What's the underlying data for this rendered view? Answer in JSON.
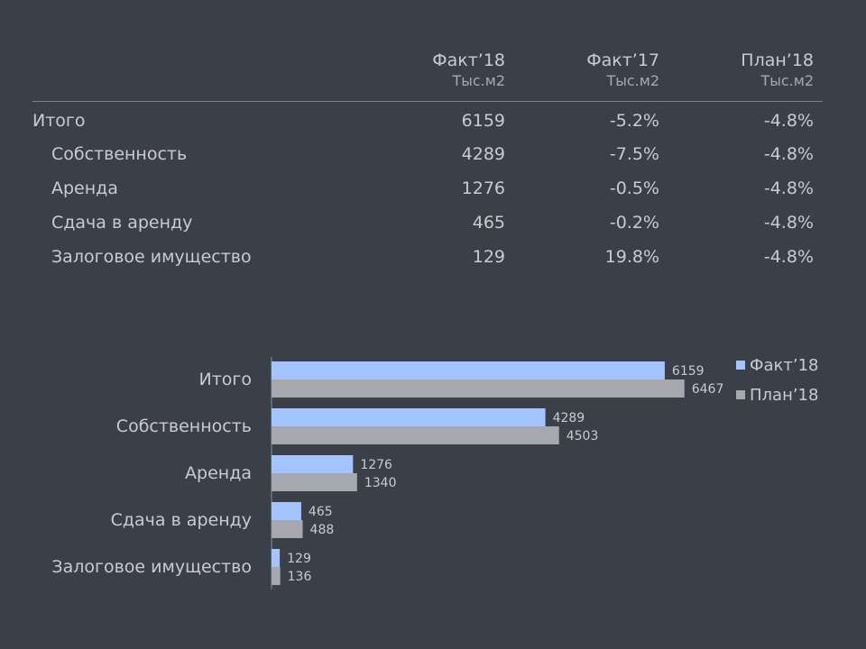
{
  "table": {
    "headers": [
      {
        "title": "Факт’18",
        "unit": "Тыс.м2"
      },
      {
        "title": "Факт’17",
        "unit": "Тыс.м2"
      },
      {
        "title": "План’18",
        "unit": "Тыс.м2"
      }
    ],
    "rows": [
      {
        "label": "Итого",
        "fact18": "6159",
        "fact17": "-5.2%",
        "plan18": "-4.8%"
      },
      {
        "label": "Собственность",
        "fact18": "4289",
        "fact17": "-7.5%",
        "plan18": "-4.8%"
      },
      {
        "label": "Аренда",
        "fact18": "1276",
        "fact17": "-0.5%",
        "plan18": "-4.8%"
      },
      {
        "label": "Сдача в аренду",
        "fact18": "465",
        "fact17": "-0.2%",
        "plan18": "-4.8%"
      },
      {
        "label": "Залоговое имущество",
        "fact18": "129",
        "fact17": "19.8%",
        "plan18": "-4.8%"
      }
    ]
  },
  "chart_data": {
    "type": "bar",
    "orientation": "horizontal",
    "categories": [
      "Итого",
      "Собственность",
      "Аренда",
      "Сдача в аренду",
      "Залоговое имущество"
    ],
    "series": [
      {
        "name": "Факт’18",
        "values": [
          6159,
          4289,
          1276,
          465,
          129
        ],
        "color": "#a3c4ff"
      },
      {
        "name": "План’18",
        "values": [
          6467,
          4503,
          1340,
          488,
          136
        ],
        "color": "#a6a8ad"
      }
    ],
    "xlim": [
      0,
      7700
    ],
    "legend_position": "top-right",
    "data_labels": true,
    "grid": false
  }
}
